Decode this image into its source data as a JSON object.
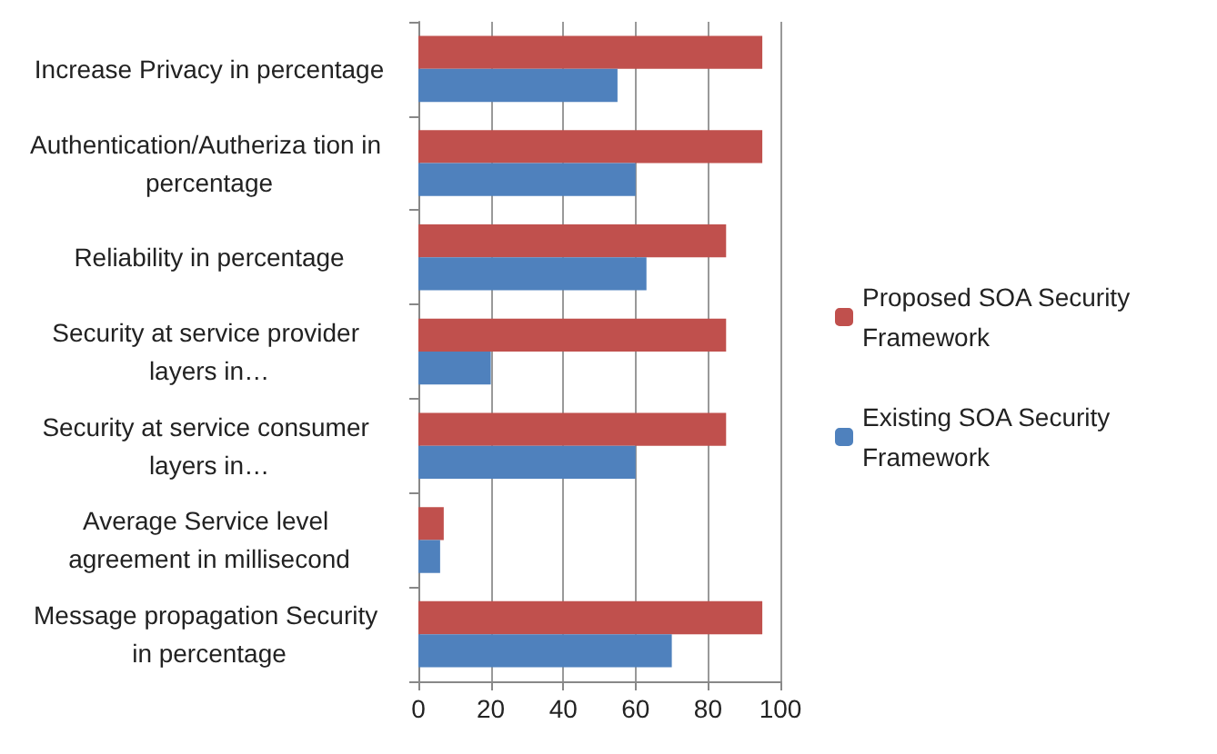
{
  "chart_data": {
    "type": "bar",
    "orientation": "horizontal",
    "categories": [
      "Increase Privacy in percentage",
      "Authentication/Autheriza tion in percentage",
      "Reliability in percentage",
      "Security at service provider layers in…",
      "Security at service consumer layers in…",
      "Average Service level agreement in millisecond",
      "Message propagation Security in percentage"
    ],
    "series": [
      {
        "name": "Proposed SOA Security Framework",
        "color": "#c0504d",
        "values": [
          95,
          95,
          85,
          85,
          85,
          7,
          95
        ]
      },
      {
        "name": "Existing SOA Security Framework",
        "color": "#4f81bd",
        "values": [
          55,
          60,
          63,
          20,
          60,
          6,
          70
        ]
      }
    ],
    "xlim": [
      0,
      100
    ],
    "xticks": [
      0,
      20,
      40,
      60,
      80,
      100
    ],
    "grid": "x",
    "legend": "right"
  }
}
